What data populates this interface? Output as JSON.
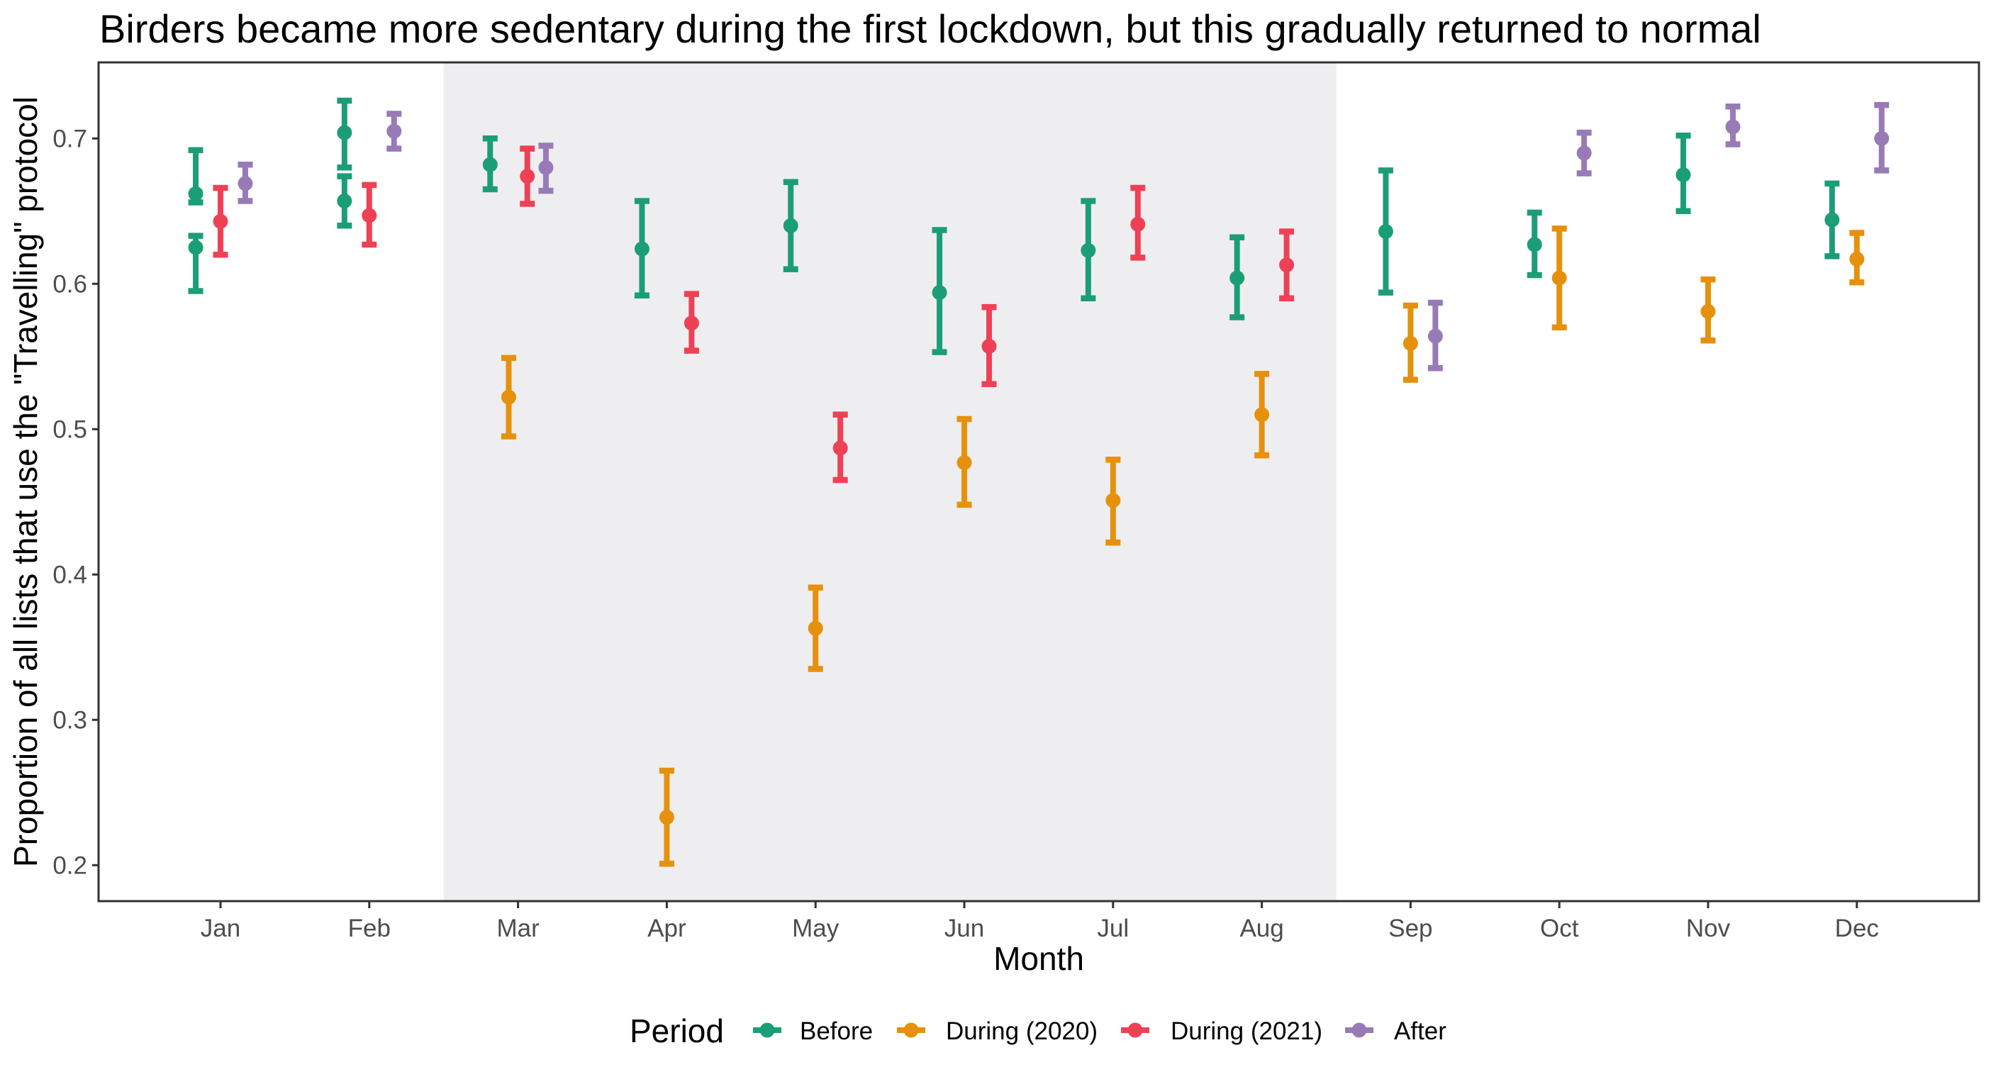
{
  "chart_data": {
    "type": "errorbar-pointrange",
    "title": "Birders became more sedentary during the first lockdown, but this gradually returned to normal",
    "xlabel": "Month",
    "ylabel": "Proportion of all lists that use the \"Travelling\" protocol",
    "categories": [
      "Jan",
      "Feb",
      "Mar",
      "Apr",
      "May",
      "Jun",
      "Jul",
      "Aug",
      "Sep",
      "Oct",
      "Nov",
      "Dec"
    ],
    "yticks": [
      0.2,
      0.3,
      0.4,
      0.5,
      0.6,
      0.7
    ],
    "ytick_labels": [
      "0.2",
      "0.3",
      "0.4",
      "0.5",
      "0.6",
      "0.7"
    ],
    "ylim": [
      0.175,
      0.752
    ],
    "grid": false,
    "shaded_region": {
      "from": "Mar",
      "to": "Aug",
      "meaning": "lockdown period",
      "color": "#eeeef0"
    },
    "legend": {
      "title": "Period",
      "position": "bottom"
    },
    "series": [
      {
        "name": "Before",
        "color": "#1b9e77",
        "points": [
          {
            "month": "Jan",
            "y": 0.662,
            "lower": 0.656,
            "upper": 0.692
          },
          {
            "month": "Jan",
            "y": 0.625,
            "lower": 0.595,
            "upper": 0.633
          },
          {
            "month": "Feb",
            "y": 0.704,
            "lower": 0.68,
            "upper": 0.726
          },
          {
            "month": "Feb",
            "y": 0.657,
            "lower": 0.64,
            "upper": 0.674
          },
          {
            "month": "Mar",
            "y": 0.682,
            "lower": 0.665,
            "upper": 0.7
          },
          {
            "month": "Apr",
            "y": 0.624,
            "lower": 0.592,
            "upper": 0.657
          },
          {
            "month": "May",
            "y": 0.64,
            "lower": 0.61,
            "upper": 0.67
          },
          {
            "month": "Jun",
            "y": 0.594,
            "lower": 0.553,
            "upper": 0.637
          },
          {
            "month": "Jul",
            "y": 0.623,
            "lower": 0.59,
            "upper": 0.657
          },
          {
            "month": "Aug",
            "y": 0.604,
            "lower": 0.577,
            "upper": 0.632
          },
          {
            "month": "Sep",
            "y": 0.636,
            "lower": 0.594,
            "upper": 0.678
          },
          {
            "month": "Oct",
            "y": 0.627,
            "lower": 0.606,
            "upper": 0.649
          },
          {
            "month": "Nov",
            "y": 0.675,
            "lower": 0.65,
            "upper": 0.702
          },
          {
            "month": "Dec",
            "y": 0.644,
            "lower": 0.619,
            "upper": 0.669
          }
        ]
      },
      {
        "name": "During (2020)",
        "color": "#e6910b",
        "points": [
          {
            "month": "Mar",
            "y": 0.522,
            "lower": 0.495,
            "upper": 0.549
          },
          {
            "month": "Apr",
            "y": 0.233,
            "lower": 0.201,
            "upper": 0.265
          },
          {
            "month": "May",
            "y": 0.363,
            "lower": 0.335,
            "upper": 0.391
          },
          {
            "month": "Jun",
            "y": 0.477,
            "lower": 0.448,
            "upper": 0.507
          },
          {
            "month": "Jul",
            "y": 0.451,
            "lower": 0.422,
            "upper": 0.479
          },
          {
            "month": "Aug",
            "y": 0.51,
            "lower": 0.482,
            "upper": 0.538
          },
          {
            "month": "Sep",
            "y": 0.559,
            "lower": 0.534,
            "upper": 0.585
          },
          {
            "month": "Oct",
            "y": 0.604,
            "lower": 0.57,
            "upper": 0.638
          },
          {
            "month": "Nov",
            "y": 0.581,
            "lower": 0.561,
            "upper": 0.603
          },
          {
            "month": "Dec",
            "y": 0.617,
            "lower": 0.601,
            "upper": 0.635
          }
        ]
      },
      {
        "name": "During (2021)",
        "color": "#ee4155",
        "points": [
          {
            "month": "Jan",
            "y": 0.643,
            "lower": 0.62,
            "upper": 0.666
          },
          {
            "month": "Feb",
            "y": 0.647,
            "lower": 0.627,
            "upper": 0.668
          },
          {
            "month": "Mar",
            "y": 0.674,
            "lower": 0.655,
            "upper": 0.693
          },
          {
            "month": "Apr",
            "y": 0.573,
            "lower": 0.554,
            "upper": 0.593
          },
          {
            "month": "May",
            "y": 0.487,
            "lower": 0.465,
            "upper": 0.51
          },
          {
            "month": "Jun",
            "y": 0.557,
            "lower": 0.531,
            "upper": 0.584
          },
          {
            "month": "Jul",
            "y": 0.641,
            "lower": 0.618,
            "upper": 0.666
          },
          {
            "month": "Aug",
            "y": 0.613,
            "lower": 0.59,
            "upper": 0.636
          }
        ]
      },
      {
        "name": "After",
        "color": "#987bb6",
        "points": [
          {
            "month": "Jan",
            "y": 0.669,
            "lower": 0.657,
            "upper": 0.682
          },
          {
            "month": "Feb",
            "y": 0.705,
            "lower": 0.693,
            "upper": 0.717
          },
          {
            "month": "Mar",
            "y": 0.68,
            "lower": 0.664,
            "upper": 0.695
          },
          {
            "month": "Sep",
            "y": 0.564,
            "lower": 0.542,
            "upper": 0.587
          },
          {
            "month": "Oct",
            "y": 0.69,
            "lower": 0.676,
            "upper": 0.704
          },
          {
            "month": "Nov",
            "y": 0.708,
            "lower": 0.696,
            "upper": 0.722
          },
          {
            "month": "Dec",
            "y": 0.7,
            "lower": 0.678,
            "upper": 0.723
          }
        ]
      }
    ]
  }
}
